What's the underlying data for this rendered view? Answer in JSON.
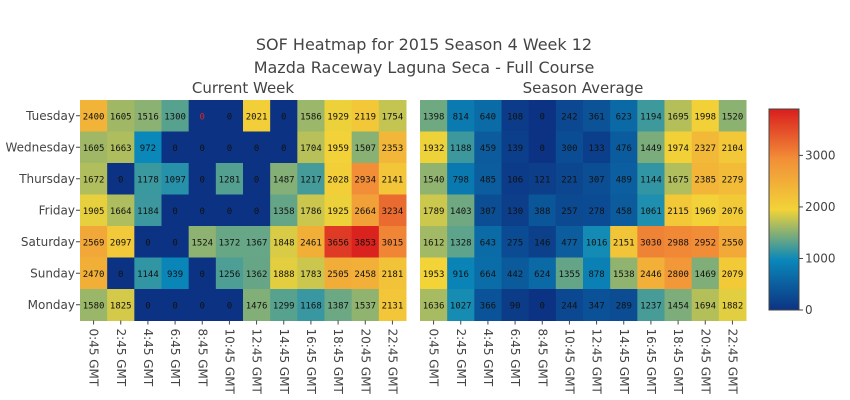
{
  "chart_data": {
    "type": "heatmap",
    "title": "SOF Heatmap for 2015 Season 4 Week 12",
    "subtitle": "Mazda Raceway Laguna Seca - Full Course",
    "rows": [
      "Tuesday",
      "Wednesday",
      "Thursday",
      "Friday",
      "Saturday",
      "Sunday",
      "Monday"
    ],
    "columns": [
      "0:45 GMT",
      "2:45 GMT",
      "4:45 GMT",
      "6:45 GMT",
      "8:45 GMT",
      "10:45 GMT",
      "12:45 GMT",
      "14:45 GMT",
      "16:45 GMT",
      "18:45 GMT",
      "20:45 GMT",
      "22:45 GMT"
    ],
    "zlim": [
      0,
      3900
    ],
    "colorbar_ticks": [
      0,
      1000,
      2000,
      3000
    ],
    "colorscale": [
      "#0c3383",
      "#0a88ba",
      "#f2d338",
      "#f28f38",
      "#d91e1e"
    ],
    "panels": [
      {
        "title": "Current Week",
        "values": [
          [
            2400,
            1605,
            1516,
            1300,
            0,
            0,
            2021,
            0,
            1586,
            1929,
            2119,
            1754
          ],
          [
            1605,
            1663,
            972,
            0,
            0,
            0,
            0,
            0,
            1704,
            1959,
            1507,
            2353
          ],
          [
            1672,
            0,
            1178,
            1097,
            0,
            1281,
            0,
            1487,
            1217,
            2028,
            2934,
            2141
          ],
          [
            1905,
            1664,
            1184,
            0,
            0,
            0,
            0,
            1358,
            1786,
            1925,
            2664,
            3234
          ],
          [
            2569,
            2097,
            0,
            0,
            1524,
            1372,
            1367,
            1848,
            2461,
            3656,
            3853,
            3015
          ],
          [
            2470,
            0,
            1144,
            939,
            0,
            1256,
            1362,
            1888,
            1783,
            2505,
            2458,
            2181
          ],
          [
            1580,
            1825,
            0,
            0,
            0,
            0,
            1476,
            1299,
            1168,
            1387,
            1537,
            2131
          ]
        ]
      },
      {
        "title": "Season Average",
        "values": [
          [
            1398,
            814,
            640,
            108,
            0,
            242,
            361,
            623,
            1194,
            1695,
            1998,
            1520
          ],
          [
            1932,
            1188,
            459,
            139,
            0,
            300,
            133,
            476,
            1449,
            1974,
            2327,
            2104
          ],
          [
            1540,
            798,
            485,
            106,
            121,
            221,
            307,
            489,
            1144,
            1675,
            2385,
            2279
          ],
          [
            1789,
            1403,
            307,
            130,
            388,
            257,
            278,
            458,
            1061,
            2115,
            1969,
            2076
          ],
          [
            1612,
            1328,
            643,
            275,
            146,
            477,
            1016,
            2151,
            3030,
            2988,
            2952,
            2550
          ],
          [
            1953,
            916,
            664,
            442,
            624,
            1355,
            878,
            1538,
            2446,
            2800,
            1469,
            2079
          ],
          [
            1636,
            1027,
            366,
            90,
            0,
            244,
            347,
            289,
            1237,
            1454,
            1694,
            1882
          ]
        ]
      }
    ]
  },
  "colors": {
    "title_text": "#444444",
    "zero_highlight_text": "#d62728",
    "cell_text": "#111111"
  }
}
